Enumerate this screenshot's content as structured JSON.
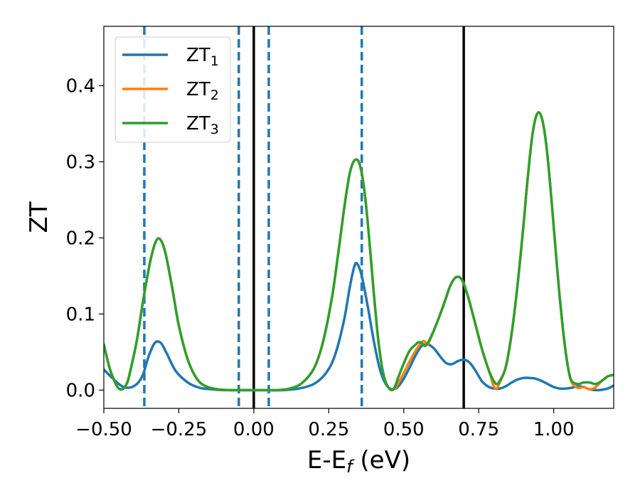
{
  "chart_data": {
    "type": "line",
    "title": "",
    "xlabel": "E-E",
    "xlabel_sub": "f",
    "xlabel_unit": " (eV)",
    "ylabel": "ZT",
    "xlim": [
      -0.5,
      1.2
    ],
    "ylim": [
      -0.024,
      0.478
    ],
    "xticks": [
      -0.5,
      -0.25,
      0.0,
      0.25,
      0.5,
      0.75,
      1.0
    ],
    "xtick_labels": [
      "−0.50",
      "−0.25",
      "0.00",
      "0.25",
      "0.50",
      "0.75",
      "1.00"
    ],
    "yticks": [
      0.0,
      0.1,
      0.2,
      0.3,
      0.4
    ],
    "ytick_labels": [
      "0.0",
      "0.1",
      "0.2",
      "0.3",
      "0.4"
    ],
    "grid": false,
    "legend_position": "top-left",
    "vlines_solid": [
      0.0,
      0.7
    ],
    "vlines_dashed": [
      -0.365,
      -0.05,
      0.05,
      0.36
    ],
    "series": [
      {
        "name": "ZT",
        "sub": "1",
        "color": "#1f77b4",
        "x": [
          -0.5,
          -0.45,
          -0.42,
          -0.39,
          -0.37,
          -0.35,
          -0.33,
          -0.31,
          -0.29,
          -0.26,
          -0.22,
          -0.18,
          -0.14,
          -0.1,
          -0.05,
          0.0,
          0.05,
          0.1,
          0.15,
          0.2,
          0.24,
          0.27,
          0.3,
          0.32,
          0.335,
          0.345,
          0.36,
          0.38,
          0.4,
          0.42,
          0.44,
          0.46,
          0.48,
          0.5,
          0.52,
          0.54,
          0.56,
          0.58,
          0.6,
          0.62,
          0.64,
          0.66,
          0.68,
          0.7,
          0.72,
          0.74,
          0.76,
          0.78,
          0.8,
          0.82,
          0.84,
          0.86,
          0.88,
          0.9,
          0.92,
          0.94,
          0.96,
          0.98,
          1.0,
          1.02,
          1.04,
          1.06,
          1.08,
          1.1,
          1.12,
          1.15,
          1.18,
          1.2
        ],
        "y": [
          0.027,
          0.008,
          0.003,
          0.008,
          0.02,
          0.045,
          0.062,
          0.062,
          0.048,
          0.025,
          0.01,
          0.003,
          0.001,
          0.0,
          0.0,
          0.0,
          0.0,
          0.0,
          0.002,
          0.008,
          0.022,
          0.045,
          0.09,
          0.135,
          0.162,
          0.166,
          0.15,
          0.11,
          0.065,
          0.028,
          0.008,
          0.001,
          0.004,
          0.015,
          0.03,
          0.046,
          0.058,
          0.06,
          0.055,
          0.045,
          0.036,
          0.034,
          0.038,
          0.04,
          0.036,
          0.025,
          0.012,
          0.005,
          0.002,
          0.002,
          0.005,
          0.01,
          0.014,
          0.016,
          0.016,
          0.015,
          0.012,
          0.008,
          0.004,
          0.002,
          0.002,
          0.003,
          0.005,
          0.004,
          0.001,
          0.0,
          0.002,
          0.006
        ]
      },
      {
        "name": "ZT",
        "sub": "2",
        "color": "#ff7f0e",
        "x": [
          -0.5,
          -0.48,
          -0.46,
          -0.45,
          -0.44,
          -0.43,
          -0.42,
          -0.41,
          -0.39,
          -0.37,
          -0.35,
          -0.34,
          -0.33,
          -0.32,
          -0.31,
          -0.3,
          -0.29,
          -0.27,
          -0.25,
          -0.22,
          -0.19,
          -0.16,
          -0.12,
          -0.08,
          -0.04,
          0.0,
          0.04,
          0.08,
          0.12,
          0.16,
          0.2,
          0.23,
          0.26,
          0.28,
          0.3,
          0.31,
          0.32,
          0.33,
          0.34,
          0.35,
          0.36,
          0.37,
          0.38,
          0.39,
          0.4,
          0.41,
          0.42,
          0.43,
          0.44,
          0.45,
          0.46,
          0.47,
          0.48,
          0.5,
          0.52,
          0.54,
          0.56,
          0.57,
          0.58,
          0.6,
          0.62,
          0.64,
          0.65,
          0.66,
          0.67,
          0.68,
          0.69,
          0.7,
          0.71,
          0.72,
          0.74,
          0.76,
          0.78,
          0.79,
          0.8,
          0.81,
          0.82,
          0.84,
          0.86,
          0.88,
          0.9,
          0.91,
          0.92,
          0.93,
          0.94,
          0.95,
          0.96,
          0.97,
          0.98,
          0.99,
          1.0,
          1.01,
          1.02,
          1.03,
          1.04,
          1.05,
          1.06,
          1.08,
          1.1,
          1.12,
          1.14,
          1.16,
          1.18,
          1.2
        ],
        "y": [
          0.06,
          0.028,
          0.008,
          0.002,
          0.001,
          0.004,
          0.012,
          0.028,
          0.065,
          0.115,
          0.16,
          0.178,
          0.192,
          0.199,
          0.197,
          0.188,
          0.172,
          0.13,
          0.085,
          0.04,
          0.015,
          0.005,
          0.001,
          0.0,
          0.0,
          0.0,
          0.0,
          0.0,
          0.002,
          0.009,
          0.028,
          0.062,
          0.12,
          0.175,
          0.235,
          0.262,
          0.285,
          0.298,
          0.303,
          0.3,
          0.285,
          0.258,
          0.22,
          0.175,
          0.128,
          0.085,
          0.05,
          0.025,
          0.01,
          0.003,
          0.0,
          0.002,
          0.008,
          0.022,
          0.038,
          0.052,
          0.063,
          0.064,
          0.06,
          0.078,
          0.098,
          0.12,
          0.132,
          0.141,
          0.147,
          0.149,
          0.147,
          0.14,
          0.128,
          0.115,
          0.085,
          0.055,
          0.03,
          0.018,
          0.005,
          0.002,
          0.01,
          0.03,
          0.075,
          0.14,
          0.22,
          0.265,
          0.305,
          0.338,
          0.358,
          0.365,
          0.358,
          0.338,
          0.305,
          0.262,
          0.215,
          0.167,
          0.122,
          0.083,
          0.05,
          0.025,
          0.01,
          0.003,
          0.004,
          0.001,
          0.004,
          0.012,
          0.018,
          0.02
        ]
      },
      {
        "name": "ZT",
        "sub": "3",
        "color": "#2ca02c",
        "x": [
          -0.5,
          -0.48,
          -0.46,
          -0.45,
          -0.44,
          -0.43,
          -0.42,
          -0.41,
          -0.39,
          -0.37,
          -0.35,
          -0.34,
          -0.33,
          -0.32,
          -0.31,
          -0.3,
          -0.29,
          -0.27,
          -0.25,
          -0.22,
          -0.19,
          -0.16,
          -0.12,
          -0.08,
          -0.04,
          0.0,
          0.04,
          0.08,
          0.12,
          0.16,
          0.2,
          0.23,
          0.26,
          0.28,
          0.3,
          0.31,
          0.32,
          0.33,
          0.34,
          0.35,
          0.36,
          0.37,
          0.38,
          0.39,
          0.4,
          0.41,
          0.42,
          0.43,
          0.44,
          0.45,
          0.46,
          0.47,
          0.48,
          0.5,
          0.52,
          0.54,
          0.55,
          0.56,
          0.57,
          0.58,
          0.6,
          0.62,
          0.64,
          0.65,
          0.66,
          0.67,
          0.68,
          0.69,
          0.7,
          0.71,
          0.72,
          0.74,
          0.76,
          0.78,
          0.79,
          0.8,
          0.81,
          0.82,
          0.84,
          0.86,
          0.88,
          0.9,
          0.91,
          0.92,
          0.93,
          0.94,
          0.95,
          0.96,
          0.97,
          0.98,
          0.99,
          1.0,
          1.01,
          1.02,
          1.03,
          1.04,
          1.05,
          1.06,
          1.08,
          1.1,
          1.12,
          1.14,
          1.16,
          1.18,
          1.2
        ],
        "y": [
          0.06,
          0.028,
          0.008,
          0.002,
          0.001,
          0.004,
          0.012,
          0.028,
          0.065,
          0.115,
          0.16,
          0.178,
          0.192,
          0.199,
          0.197,
          0.188,
          0.172,
          0.13,
          0.085,
          0.04,
          0.015,
          0.005,
          0.001,
          0.0,
          0.0,
          0.0,
          0.0,
          0.0,
          0.002,
          0.009,
          0.028,
          0.062,
          0.12,
          0.175,
          0.235,
          0.262,
          0.285,
          0.298,
          0.303,
          0.3,
          0.285,
          0.258,
          0.22,
          0.175,
          0.128,
          0.085,
          0.05,
          0.025,
          0.01,
          0.003,
          0.0,
          0.004,
          0.015,
          0.035,
          0.052,
          0.06,
          0.063,
          0.062,
          0.058,
          0.062,
          0.078,
          0.098,
          0.12,
          0.132,
          0.141,
          0.147,
          0.149,
          0.147,
          0.14,
          0.128,
          0.115,
          0.085,
          0.055,
          0.03,
          0.02,
          0.012,
          0.008,
          0.012,
          0.03,
          0.075,
          0.14,
          0.22,
          0.265,
          0.305,
          0.338,
          0.358,
          0.365,
          0.358,
          0.338,
          0.305,
          0.262,
          0.215,
          0.167,
          0.122,
          0.083,
          0.05,
          0.025,
          0.012,
          0.008,
          0.01,
          0.01,
          0.008,
          0.012,
          0.018,
          0.02
        ]
      }
    ]
  }
}
